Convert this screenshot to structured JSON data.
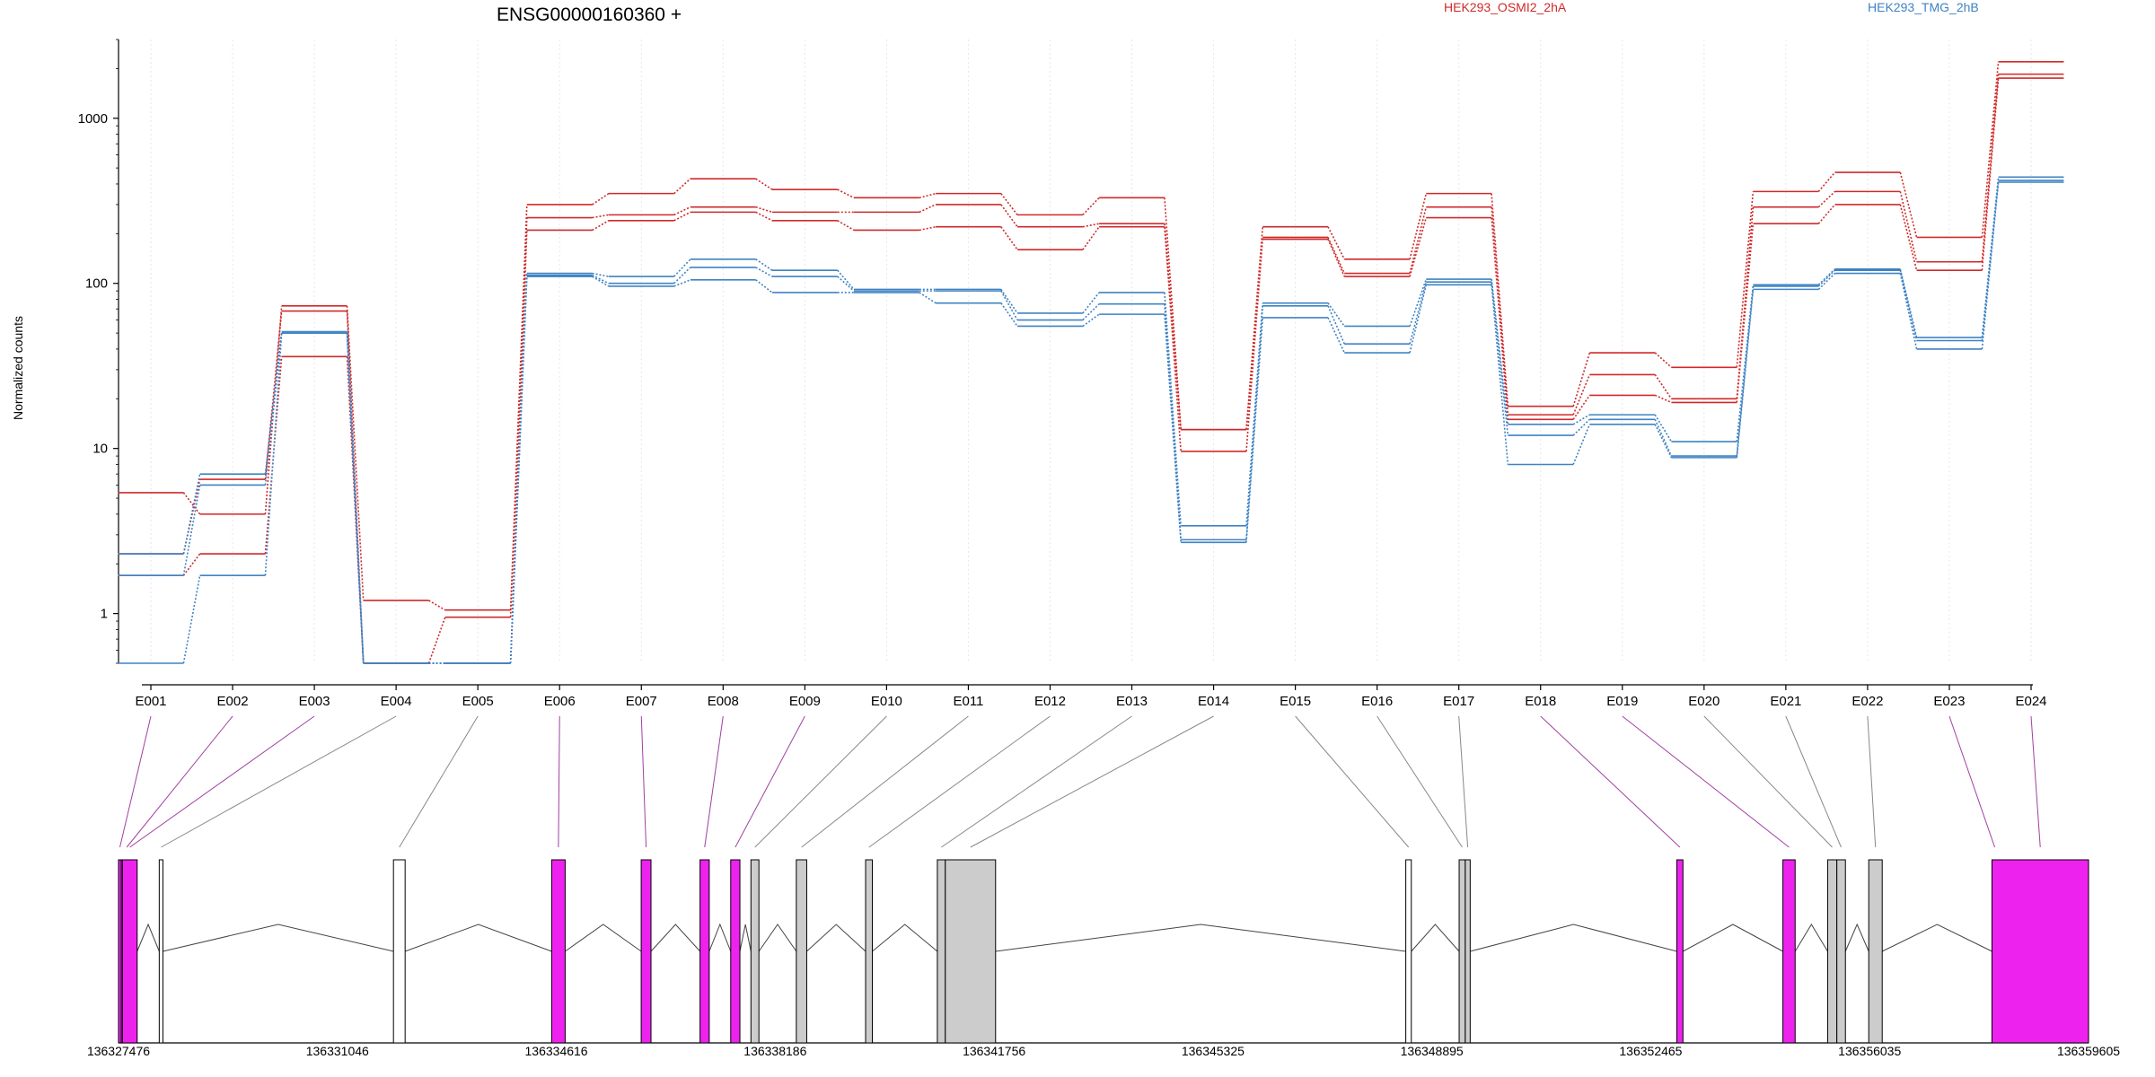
{
  "title": "ENSG00000160360 +",
  "legend": [
    {
      "label": "HEK293_OSMI2_2hA",
      "color": "#cf2a2a"
    },
    {
      "label": "HEK293_TMG_2hB",
      "color": "#3f83c3"
    }
  ],
  "colors": {
    "red": "#cf2a2a",
    "blue": "#3f83c3",
    "magenta": "#ee22ee",
    "gray": "#cccccc",
    "white": "#ffffff",
    "connector_purple": "#a040a0",
    "connector_gray": "#888888"
  },
  "chart_data": {
    "type": "line",
    "ylabel": "Normalized counts",
    "yscale": "log",
    "ylim": [
      0.5,
      3000
    ],
    "ytick_labels": [
      "1",
      "10",
      "100",
      "1000"
    ],
    "ytick_values": [
      1,
      10,
      100,
      1000
    ],
    "categories": [
      "E001",
      "E002",
      "E003",
      "E004",
      "E005",
      "E006",
      "E007",
      "E008",
      "E009",
      "E010",
      "E011",
      "E012",
      "E013",
      "E014",
      "E015",
      "E016",
      "E017",
      "E018",
      "E019",
      "E020",
      "E021",
      "E022",
      "E023",
      "E024"
    ],
    "series": [
      {
        "name": "HEK293_OSMI2_2hA",
        "color": "red",
        "values": [
          5.4,
          4.0,
          73,
          1.2,
          1.05,
          300,
          350,
          430,
          370,
          330,
          350,
          260,
          330,
          13,
          220,
          140,
          350,
          18,
          38,
          31,
          360,
          470,
          190,
          2200
        ]
      },
      {
        "name": "HEK293_OSMI2_2hA",
        "color": "red",
        "values": [
          2.3,
          6.5,
          68,
          0.5,
          0.95,
          250,
          260,
          290,
          270,
          270,
          300,
          220,
          230,
          13,
          190,
          115,
          290,
          16,
          28,
          20,
          290,
          360,
          135,
          1850
        ]
      },
      {
        "name": "HEK293_OSMI2_2hA",
        "color": "red",
        "values": [
          1.7,
          2.3,
          36,
          0.5,
          0.5,
          210,
          240,
          270,
          240,
          210,
          220,
          160,
          220,
          9.6,
          185,
          110,
          250,
          15,
          21,
          19,
          230,
          300,
          120,
          1750
        ]
      },
      {
        "name": "HEK293_TMG_2hB",
        "color": "blue",
        "values": [
          2.3,
          7.0,
          51,
          0.5,
          0.5,
          115,
          110,
          140,
          120,
          92,
          92,
          66,
          88,
          3.4,
          76,
          55,
          106,
          14,
          16,
          11,
          98,
          122,
          47,
          440
        ]
      },
      {
        "name": "HEK293_TMG_2hB",
        "color": "blue",
        "values": [
          1.7,
          6.0,
          50,
          0.5,
          0.5,
          112,
          100,
          125,
          110,
          90,
          90,
          60,
          75,
          2.8,
          73,
          43,
          102,
          12,
          15,
          9,
          96,
          120,
          45,
          420
        ]
      },
      {
        "name": "HEK293_TMG_2hB",
        "color": "blue",
        "values": [
          0.5,
          1.7,
          50,
          0.5,
          0.5,
          110,
          96,
          105,
          88,
          88,
          76,
          55,
          65,
          2.7,
          62,
          38,
          98,
          8,
          14,
          8.8,
          92,
          115,
          40,
          410
        ]
      }
    ]
  },
  "gene_model": {
    "coordinate_labels": [
      "136327476",
      "136331046",
      "136334616",
      "136338186",
      "136341756",
      "136345325",
      "136348895",
      "136352465",
      "136356035",
      "136359605"
    ],
    "genome_range": [
      136327476,
      136359605
    ],
    "exons": [
      {
        "id": "E001",
        "start": 136327476,
        "end": 136327520,
        "color": "magenta"
      },
      {
        "id": "E002",
        "start": 136327520,
        "end": 136327700,
        "color": "magenta"
      },
      {
        "id": "E003",
        "start": 136327540,
        "end": 136327780,
        "color": "magenta"
      },
      {
        "id": "E004",
        "start": 136328140,
        "end": 136328200,
        "color": "white"
      },
      {
        "id": "E005",
        "start": 136331960,
        "end": 136332150,
        "color": "white"
      },
      {
        "id": "E006",
        "start": 136334540,
        "end": 136334760,
        "color": "magenta"
      },
      {
        "id": "E007",
        "start": 136336000,
        "end": 136336160,
        "color": "magenta"
      },
      {
        "id": "E008",
        "start": 136336960,
        "end": 136337110,
        "color": "magenta"
      },
      {
        "id": "E009",
        "start": 136337460,
        "end": 136337610,
        "color": "magenta"
      },
      {
        "id": "E010",
        "start": 136337790,
        "end": 136337920,
        "color": "gray"
      },
      {
        "id": "E011",
        "start": 136338530,
        "end": 136338700,
        "color": "gray"
      },
      {
        "id": "E012",
        "start": 136339660,
        "end": 136339770,
        "color": "gray"
      },
      {
        "id": "E013",
        "start": 136340830,
        "end": 136340960,
        "color": "gray"
      },
      {
        "id": "E014",
        "start": 136340960,
        "end": 136341780,
        "color": "gray"
      },
      {
        "id": "E015",
        "start": 136348470,
        "end": 136348560,
        "color": "white"
      },
      {
        "id": "E016",
        "start": 136349340,
        "end": 136349440,
        "color": "gray"
      },
      {
        "id": "E017",
        "start": 136349440,
        "end": 136349520,
        "color": "gray"
      },
      {
        "id": "E018",
        "start": 136352890,
        "end": 136352990,
        "color": "magenta"
      },
      {
        "id": "E019",
        "start": 136354620,
        "end": 136354820,
        "color": "magenta"
      },
      {
        "id": "E020",
        "start": 136355350,
        "end": 136355500,
        "color": "gray"
      },
      {
        "id": "E021",
        "start": 136355500,
        "end": 136355640,
        "color": "gray"
      },
      {
        "id": "E022",
        "start": 136356020,
        "end": 136356240,
        "color": "gray"
      },
      {
        "id": "E023",
        "start": 136358030,
        "end": 136358120,
        "color": "magenta"
      },
      {
        "id": "E024",
        "start": 136358030,
        "end": 136359605,
        "color": "magenta"
      }
    ]
  }
}
